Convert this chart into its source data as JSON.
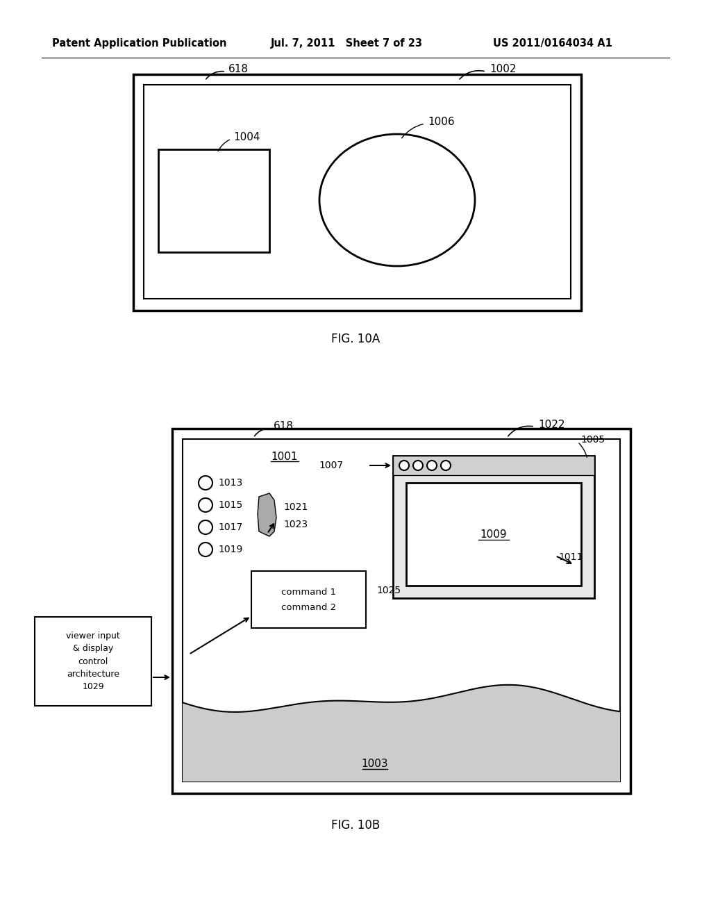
{
  "bg_color": "#ffffff",
  "header_left": "Patent Application Publication",
  "header_mid": "Jul. 7, 2011   Sheet 7 of 23",
  "header_right": "US 2011/0164034 A1",
  "fig10a_label": "FIG. 10A",
  "fig10b_label": "FIG. 10B",
  "label_618_a": "618",
  "label_1002": "1002",
  "label_1004": "1004",
  "label_1006": "1006",
  "label_618_b": "618",
  "label_1022": "1022",
  "label_1001": "1001",
  "label_1003": "1003",
  "label_1005": "1005",
  "label_1007": "1007",
  "label_1009": "1009",
  "label_1011": "1011",
  "label_1013": "1013",
  "label_1015": "1015",
  "label_1017": "1017",
  "label_1019": "1019",
  "label_1021": "1021",
  "label_1023": "1023",
  "label_1025": "1025",
  "cmd_text1": "command 1",
  "cmd_text2": "command 2",
  "viewer_text": "viewer input\n& display\ncontrol\narchitecture\n1029"
}
